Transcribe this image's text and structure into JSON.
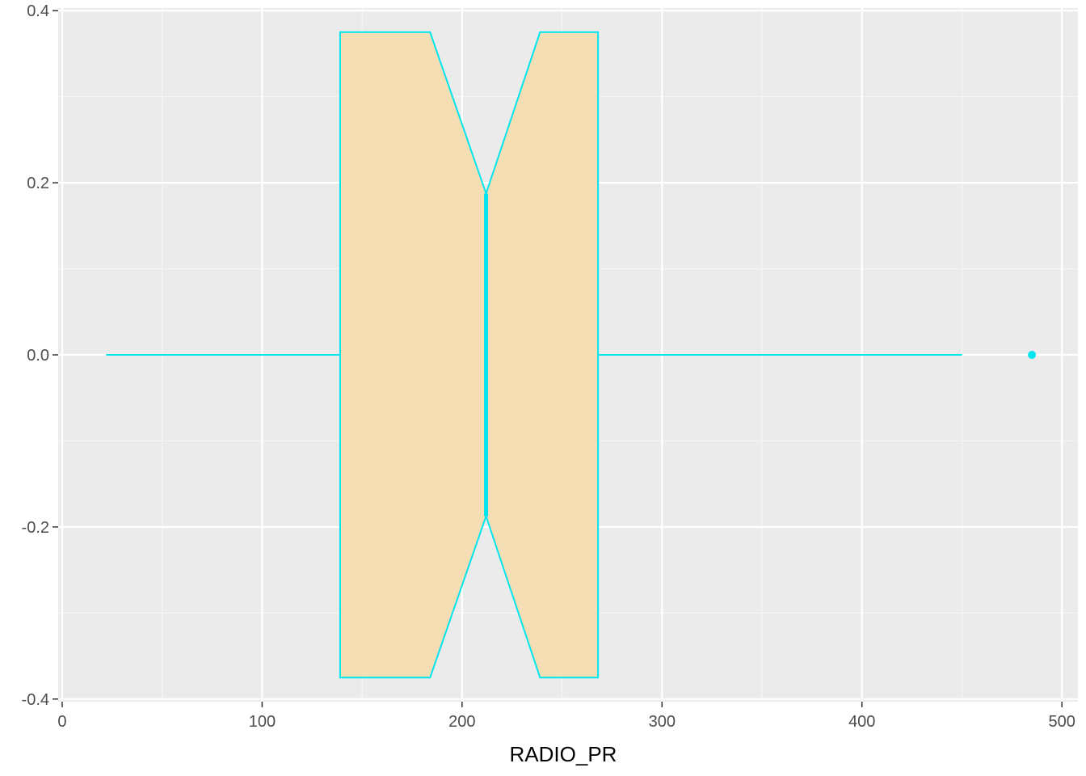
{
  "chart_data": {
    "type": "boxplot",
    "orientation": "horizontal",
    "notched": true,
    "xlabel": "RADIO_PR",
    "ylabel": "",
    "xlim": [
      -2,
      508
    ],
    "ylim": [
      -0.403,
      0.403
    ],
    "x_ticks": [
      0,
      100,
      200,
      300,
      400,
      500
    ],
    "x_tick_labels": [
      "0",
      "100",
      "200",
      "300",
      "400",
      "500"
    ],
    "y_ticks": [
      -0.4,
      -0.2,
      0.0,
      0.2,
      0.4
    ],
    "y_tick_labels": [
      "-0.4",
      "-0.2",
      "0.0",
      "0.2",
      "0.4"
    ],
    "box": {
      "y_center": 0,
      "y_halfwidth": 0.375,
      "whisker_low": 22,
      "q1": 139,
      "notch_low": 184,
      "median": 212,
      "notch_high": 239,
      "q3": 268,
      "whisker_high": 450,
      "notch_halfwidth": 0.1875
    },
    "outliers": [
      485
    ],
    "grid": true,
    "legend": "none",
    "colors": {
      "panel_background": "#ebebeb",
      "grid_major": "#ffffff",
      "grid_minor": "#f5f5f5",
      "box_fill": "#f5deb3",
      "box_outline": "#00e5ee",
      "outlier": "#00e5ee",
      "tick_label": "#4d4d4d",
      "axis_title": "#000000"
    }
  }
}
